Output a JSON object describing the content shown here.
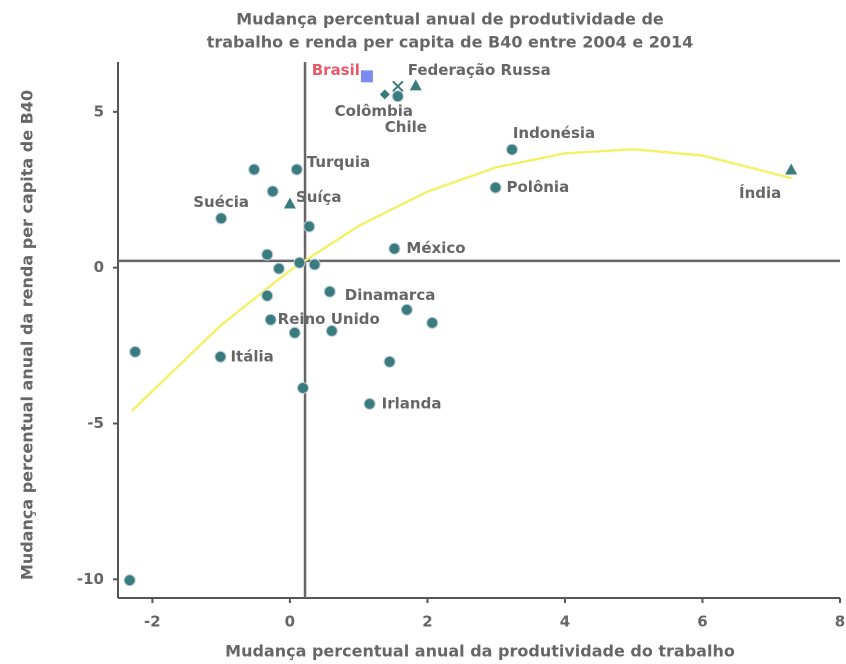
{
  "chart_data": {
    "type": "scatter",
    "title": [
      "Mudança percentual anual de produtividade de",
      "trabalho e renda per capita de B40 entre 2004 e 2014"
    ],
    "xlabel": "Mudança percentual anual da produtividade do trabalho",
    "ylabel": "Mudança percentual anual da renda per capita de B40",
    "xlim": [
      -2.5,
      8
    ],
    "ylim": [
      -10.6,
      6.6
    ],
    "xticks": [
      -2,
      0,
      2,
      4,
      6,
      8
    ],
    "yticks": [
      5,
      0,
      -5,
      -10
    ],
    "ref_lines": {
      "x": 0.22,
      "y": 0.22
    },
    "points": [
      {
        "x": -0.52,
        "y": 3.15,
        "marker": "circle",
        "color": "#3a7c7e"
      },
      {
        "x": 0.1,
        "y": 3.15,
        "marker": "circle",
        "color": "#3a7c7e",
        "label": "Turquia"
      },
      {
        "x": -0.25,
        "y": 2.45,
        "marker": "circle",
        "color": "#3a7c7e"
      },
      {
        "x": -1.0,
        "y": 1.58,
        "marker": "circle",
        "color": "#3a7c7e",
        "label": "Suécia"
      },
      {
        "x": 0.28,
        "y": 1.32,
        "marker": "circle",
        "color": "#3a7c7e"
      },
      {
        "x": -0.33,
        "y": 0.42,
        "marker": "circle",
        "color": "#3a7c7e"
      },
      {
        "x": -0.16,
        "y": -0.03,
        "marker": "circle",
        "color": "#3a7c7e"
      },
      {
        "x": 0.14,
        "y": 0.16,
        "marker": "circle",
        "color": "#3a7c7e"
      },
      {
        "x": 0.36,
        "y": 0.1,
        "marker": "circle",
        "color": "#3a7c7e"
      },
      {
        "x": 1.52,
        "y": 0.61,
        "marker": "circle",
        "color": "#3a7c7e",
        "label": "México"
      },
      {
        "x": 3.23,
        "y": 3.79,
        "marker": "circle",
        "color": "#3a7c7e",
        "label": "Indonésia"
      },
      {
        "x": 2.99,
        "y": 2.57,
        "marker": "circle",
        "color": "#3a7c7e",
        "label": "Polônia"
      },
      {
        "x": 1.57,
        "y": 5.5,
        "marker": "circle",
        "color": "#3a7c7e",
        "label": "Colômbia"
      },
      {
        "x": 0.58,
        "y": -0.77,
        "marker": "circle",
        "color": "#3a7c7e",
        "label": "Dinamarca"
      },
      {
        "x": -0.33,
        "y": -0.9,
        "marker": "circle",
        "color": "#3a7c7e"
      },
      {
        "x": -0.28,
        "y": -1.67,
        "marker": "circle",
        "color": "#3a7c7e",
        "label": "Reino Unido"
      },
      {
        "x": 0.07,
        "y": -2.09,
        "marker": "circle",
        "color": "#3a7c7e"
      },
      {
        "x": 0.61,
        "y": -2.03,
        "marker": "circle",
        "color": "#3a7c7e"
      },
      {
        "x": 1.7,
        "y": -1.35,
        "marker": "circle",
        "color": "#3a7c7e"
      },
      {
        "x": 2.07,
        "y": -1.77,
        "marker": "circle",
        "color": "#3a7c7e"
      },
      {
        "x": 1.45,
        "y": -3.02,
        "marker": "circle",
        "color": "#3a7c7e"
      },
      {
        "x": -1.01,
        "y": -2.86,
        "marker": "circle",
        "color": "#3a7c7e",
        "label": "Itália"
      },
      {
        "x": -2.25,
        "y": -2.7,
        "marker": "circle",
        "color": "#3a7c7e"
      },
      {
        "x": 0.19,
        "y": -3.86,
        "marker": "circle",
        "color": "#3a7c7e"
      },
      {
        "x": 1.16,
        "y": -4.37,
        "marker": "circle",
        "color": "#3a7c7e",
        "label": "Irlanda"
      },
      {
        "x": -2.33,
        "y": -10.03,
        "marker": "circle",
        "color": "#3a7c7e"
      },
      {
        "x": 1.12,
        "y": 6.14,
        "marker": "square",
        "color": "#7b8cf0",
        "label": "Brasil",
        "label_color": "#e8596a"
      },
      {
        "x": 1.83,
        "y": 5.85,
        "marker": "triangle",
        "color": "#3a7c7e",
        "label": "Federação Russa"
      },
      {
        "x": 1.57,
        "y": 5.82,
        "marker": "x",
        "color": "#3a7c7e"
      },
      {
        "x": 1.38,
        "y": 5.56,
        "marker": "diamond",
        "color": "#3a7c7e",
        "label": "Chile"
      },
      {
        "x": 0.0,
        "y": 2.06,
        "marker": "triangle",
        "color": "#3a7c7e",
        "label": "Suíça"
      },
      {
        "x": 7.29,
        "y": 3.15,
        "marker": "triangle",
        "color": "#3a7c7e",
        "label": "Índia"
      }
    ],
    "trend": {
      "color": "#f4f06a",
      "x": [
        -2.3,
        -1,
        0,
        1,
        2,
        3,
        4,
        5,
        6,
        7.3
      ],
      "y": [
        -4.6,
        -1.84,
        -0.09,
        1.34,
        2.44,
        3.22,
        3.67,
        3.8,
        3.6,
        2.87
      ]
    }
  }
}
